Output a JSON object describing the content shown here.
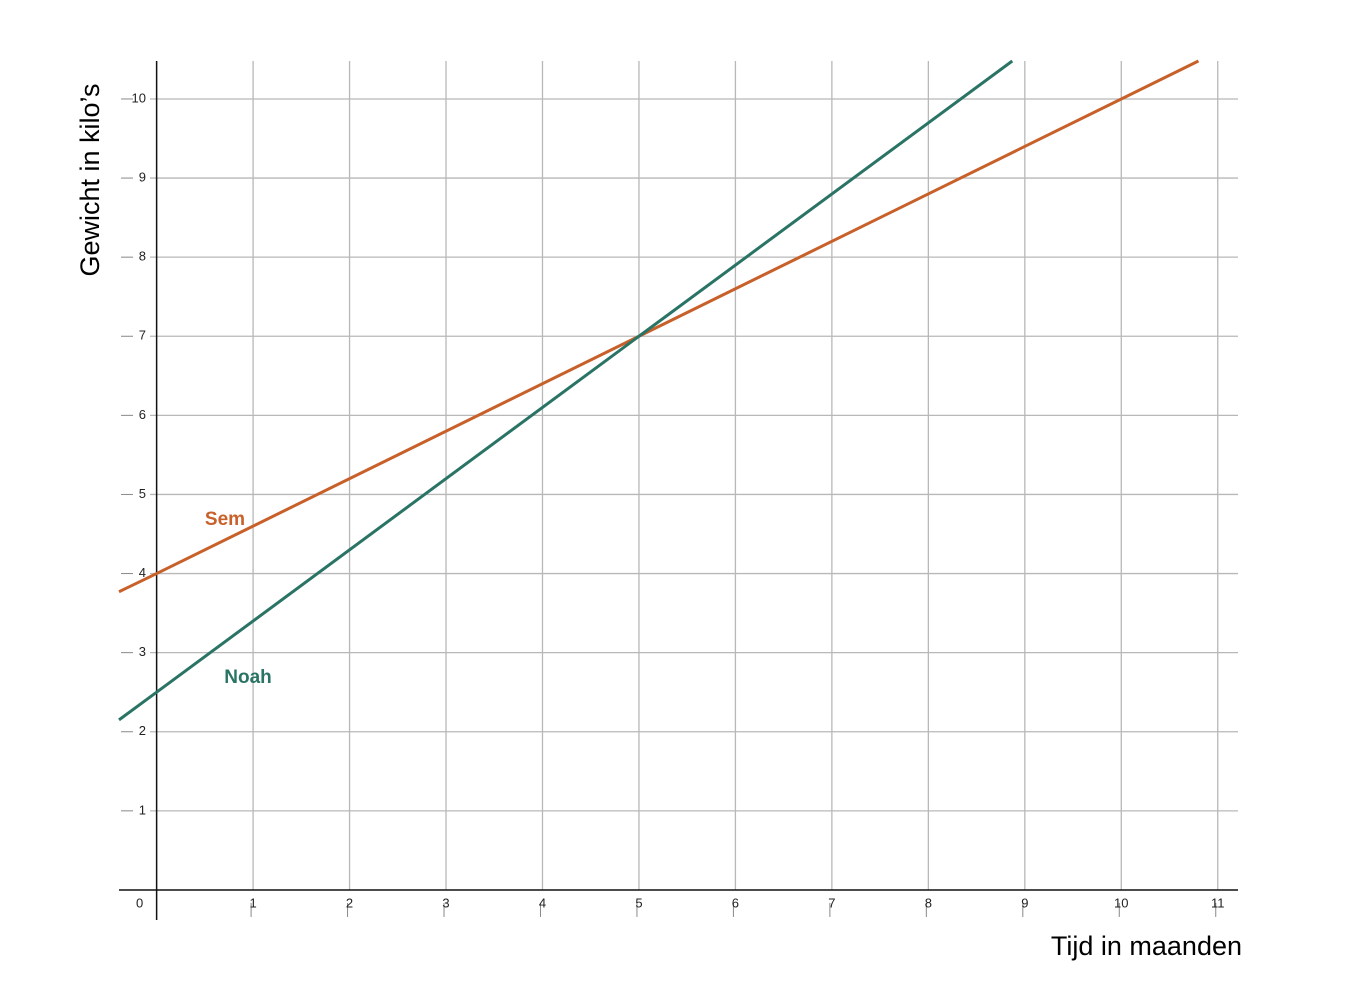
{
  "chart_data": {
    "type": "line",
    "x_label": "Tijd in maanden",
    "y_label": "Gewicht in kilo’s",
    "xlim": [
      -0.39,
      11.21
    ],
    "ylim": [
      -0.38,
      10.48
    ],
    "xticks": [
      0,
      1,
      2,
      3,
      4,
      5,
      6,
      7,
      8,
      9,
      10,
      11
    ],
    "yticks": [
      1,
      2,
      3,
      4,
      5,
      6,
      7,
      8,
      9,
      10
    ],
    "grid": true,
    "series": [
      {
        "name": "Sem",
        "color": "#c8602a",
        "x": [
          -0.39,
          0,
          5,
          10.8
        ],
        "values": [
          3.77,
          4,
          7,
          10.48
        ]
      },
      {
        "name": "Noah",
        "color": "#2a7466",
        "x": [
          -0.39,
          0,
          5,
          8.87
        ],
        "values": [
          2.15,
          2.5,
          7,
          10.48
        ]
      }
    ]
  }
}
